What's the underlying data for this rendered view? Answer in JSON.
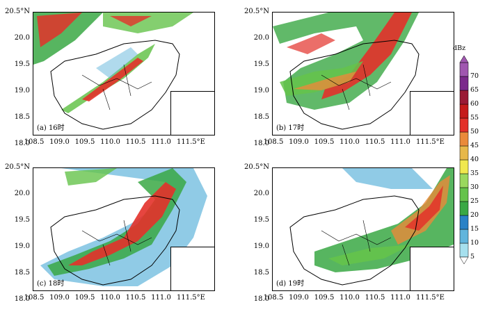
{
  "panels": [
    {
      "label": "(a) 16时",
      "x_ticks": [
        "108.5",
        "109.0",
        "109.5",
        "110.0",
        "110.5",
        "111.0",
        "111.5°E"
      ],
      "y_ticks": [
        "20.5°N",
        "20.0",
        "19.5",
        "19.0",
        "18.5",
        "18.0"
      ]
    },
    {
      "label": "(b) 17时",
      "x_ticks": [
        "108.5",
        "109.0",
        "109.5",
        "110.0",
        "110.5",
        "111.0",
        "111.5°E"
      ],
      "y_ticks": [
        "20.5°N",
        "20.0",
        "19.5",
        "19.0",
        "18.5",
        "18.0"
      ]
    },
    {
      "label": "(c) 18时",
      "x_ticks": [
        "108.5",
        "109.0",
        "109.5",
        "110.0",
        "110.5",
        "111.0",
        "111.5°E"
      ],
      "y_ticks": [
        "20.5°N",
        "20.0",
        "19.5",
        "19.0",
        "18.5",
        "18.0"
      ]
    },
    {
      "label": "(d) 19时",
      "x_ticks": [
        "108.5",
        "109.0",
        "109.5",
        "110.0",
        "110.5",
        "111.0",
        "111.5°E"
      ],
      "y_ticks": [
        "20.5°N",
        "20.0",
        "19.5",
        "19.0",
        "18.5",
        "18.0"
      ]
    }
  ],
  "colorbar": {
    "unit": "dBz",
    "levels": [
      "5",
      "10",
      "15",
      "20",
      "25",
      "30",
      "35",
      "40",
      "45",
      "50",
      "55",
      "60",
      "65",
      "70"
    ],
    "colors": [
      "#a6e0ee",
      "#61b5dc",
      "#2b82c6",
      "#3aa844",
      "#65c34b",
      "#9ad85e",
      "#f0e84e",
      "#e7b84a",
      "#ea8a3a",
      "#e3312a",
      "#c51b1b",
      "#9a1a35",
      "#7b2a8c",
      "#a057b0"
    ]
  }
}
